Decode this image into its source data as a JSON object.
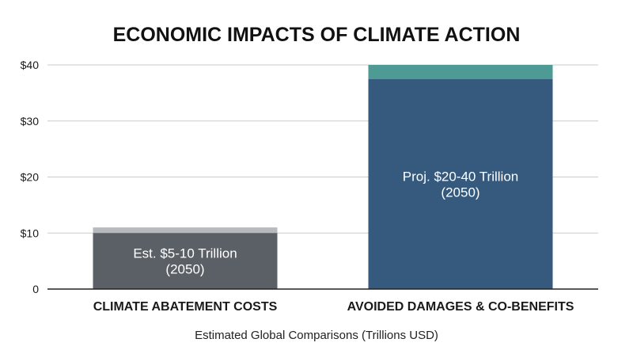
{
  "chart_data": {
    "type": "bar",
    "title": "ECONOMIC IMPACTS OF CLIMATE ACTION",
    "xlabel": "Estimated Global Comparisons (Trillions USD)",
    "ylabel": "",
    "ylim": [
      0,
      40
    ],
    "y_ticks": [
      {
        "value": 0,
        "label": "0"
      },
      {
        "value": 10,
        "label": "$10"
      },
      {
        "value": 20,
        "label": "$20"
      },
      {
        "value": 30,
        "label": "$30"
      },
      {
        "value": 40,
        "label": "$40"
      }
    ],
    "grid": true,
    "categories": [
      "CLIMATE ABATEMENT COSTS",
      "AVOIDED DAMAGES & CO-BENEFITS"
    ],
    "bars": [
      {
        "category": "CLIMATE ABATEMENT COSTS",
        "base_value": 10,
        "cap_value": 11,
        "base_color": "#5b6066",
        "cap_color": "#b7babd",
        "label_lines": [
          "Est. $5-10 Trillion",
          "(2050)"
        ]
      },
      {
        "category": "AVOIDED DAMAGES & CO-BENEFITS",
        "base_value": 37.5,
        "cap_value": 40,
        "base_color": "#355a7d",
        "cap_color": "#4e9a94",
        "label_lines": [
          "Proj. $20-40 Trillion",
          "(2050)"
        ]
      }
    ],
    "colors": {
      "grid": "#c9cbce",
      "axis": "#222222",
      "text": "#1a1a1a",
      "bar_label": "#ffffff"
    }
  }
}
